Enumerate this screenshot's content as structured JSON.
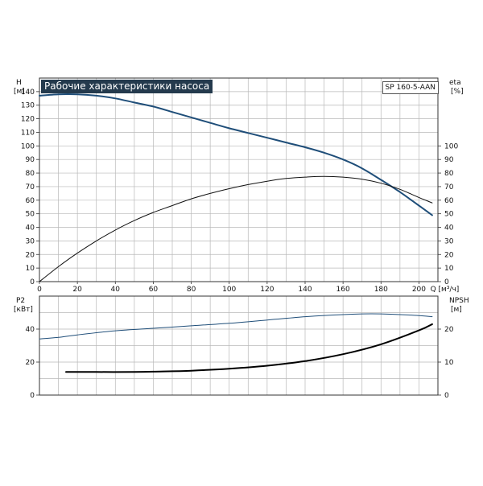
{
  "chart_data": [
    {
      "type": "line",
      "title": "Рабочие характеристики насоса",
      "model": "SP 160-5-AAN",
      "xlabel": "Q [м³/ч]",
      "xlim": [
        0,
        210
      ],
      "xticks": [
        0,
        20,
        40,
        60,
        80,
        100,
        120,
        140,
        160,
        180,
        200
      ],
      "left_axis": {
        "label": "H",
        "unit": "[м]",
        "ylim": [
          0,
          150
        ],
        "ticks": [
          0,
          10,
          20,
          30,
          40,
          50,
          60,
          70,
          80,
          90,
          100,
          110,
          120,
          130,
          140
        ]
      },
      "right_axis": {
        "label": "eta",
        "unit": "[%]",
        "ylim": [
          0,
          150
        ],
        "ticks": [
          0,
          10,
          20,
          30,
          40,
          50,
          60,
          70,
          80,
          90,
          100
        ]
      },
      "grid": true,
      "series": [
        {
          "axis": "left",
          "color": "#1f4e79",
          "width": 2,
          "x": [
            0,
            10,
            20,
            30,
            40,
            50,
            60,
            70,
            80,
            90,
            100,
            110,
            120,
            130,
            140,
            150,
            160,
            170,
            180,
            190,
            200,
            207
          ],
          "values": [
            137,
            138,
            138,
            137,
            135,
            132,
            129,
            125,
            121,
            117,
            113,
            109.5,
            106,
            102.5,
            99,
            95,
            90,
            83.5,
            75,
            66,
            56,
            49
          ]
        },
        {
          "axis": "right",
          "color": "#111111",
          "width": 1,
          "x": [
            0,
            10,
            20,
            30,
            40,
            50,
            60,
            70,
            80,
            90,
            100,
            110,
            120,
            130,
            140,
            150,
            160,
            170,
            180,
            190,
            200,
            207
          ],
          "values": [
            0,
            11,
            21,
            30,
            38,
            45,
            51,
            56,
            61,
            65,
            68.5,
            71.5,
            74,
            76,
            77,
            77.5,
            77,
            75.5,
            72.5,
            68,
            62,
            58
          ]
        }
      ]
    },
    {
      "type": "line",
      "xlim": [
        0,
        210
      ],
      "left_axis": {
        "label": "P2",
        "unit": "[кВт]",
        "ylim": [
          0,
          60
        ],
        "ticks": [
          0,
          20,
          40
        ]
      },
      "right_axis": {
        "label": "NPSH",
        "unit": "[м]",
        "ylim": [
          0,
          30
        ],
        "ticks": [
          0,
          10,
          20
        ]
      },
      "grid": true,
      "series": [
        {
          "axis": "left",
          "color": "#1f4e79",
          "width": 1,
          "x": [
            0,
            10,
            20,
            40,
            60,
            80,
            100,
            120,
            140,
            160,
            170,
            180,
            190,
            200,
            207
          ],
          "values": [
            34,
            35,
            36.5,
            39,
            40.5,
            42,
            43.5,
            45.5,
            47.5,
            48.8,
            49.2,
            49.2,
            48.8,
            48.2,
            47.5
          ]
        },
        {
          "axis": "right",
          "color": "#000000",
          "width": 2,
          "x": [
            14,
            30,
            50,
            60,
            80,
            100,
            120,
            140,
            160,
            180,
            200,
            207
          ],
          "values": [
            7,
            7,
            7,
            7.1,
            7.4,
            8,
            8.9,
            10.3,
            12.4,
            15.4,
            19.6,
            21.5
          ]
        }
      ]
    }
  ]
}
